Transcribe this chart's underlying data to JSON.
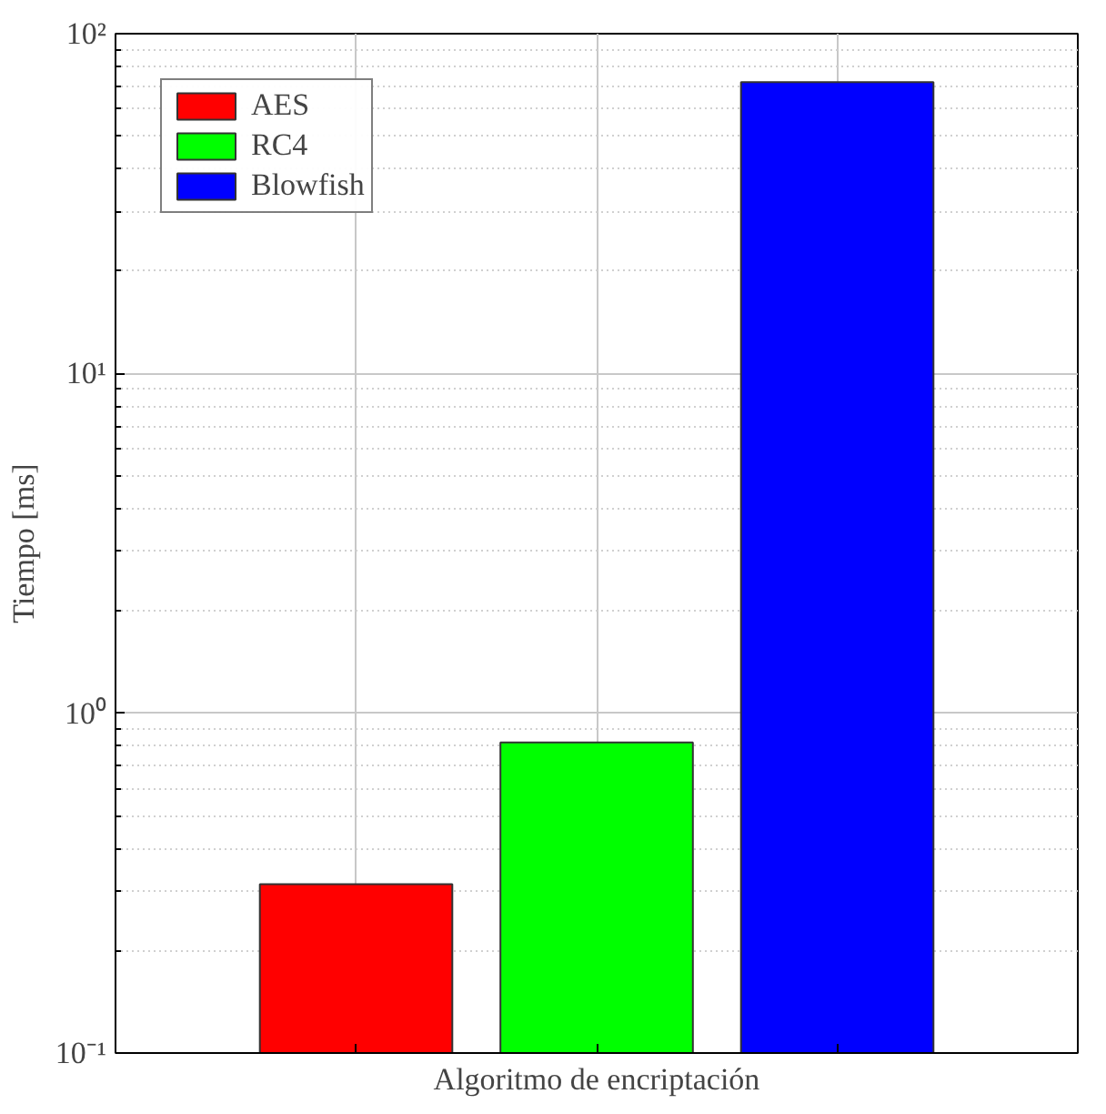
{
  "chart_data": {
    "type": "bar",
    "xlabel": "Algoritmo de encriptación",
    "ylabel": "Tiempo [ms]",
    "categories": [
      null,
      null,
      null
    ],
    "series": [
      {
        "name": "AES",
        "color": "#ff0000",
        "values": [
          0.314,
          null,
          null
        ]
      },
      {
        "name": "RC4",
        "color": "#00ff00",
        "values": [
          null,
          0.82,
          null
        ]
      },
      {
        "name": "Blowfish",
        "color": "#0000ff",
        "values": [
          null,
          null,
          72
        ]
      }
    ],
    "log": "y",
    "ylim": [
      0.1,
      100
    ],
    "yticks": [
      {
        "value": 0.1,
        "label": "10⁻¹"
      },
      {
        "value": 1,
        "label": "10⁰"
      },
      {
        "value": 10,
        "label": "10¹"
      },
      {
        "value": 100,
        "label": "10²"
      }
    ],
    "grid": true,
    "legend": "top left",
    "tick_labels": "y"
  }
}
